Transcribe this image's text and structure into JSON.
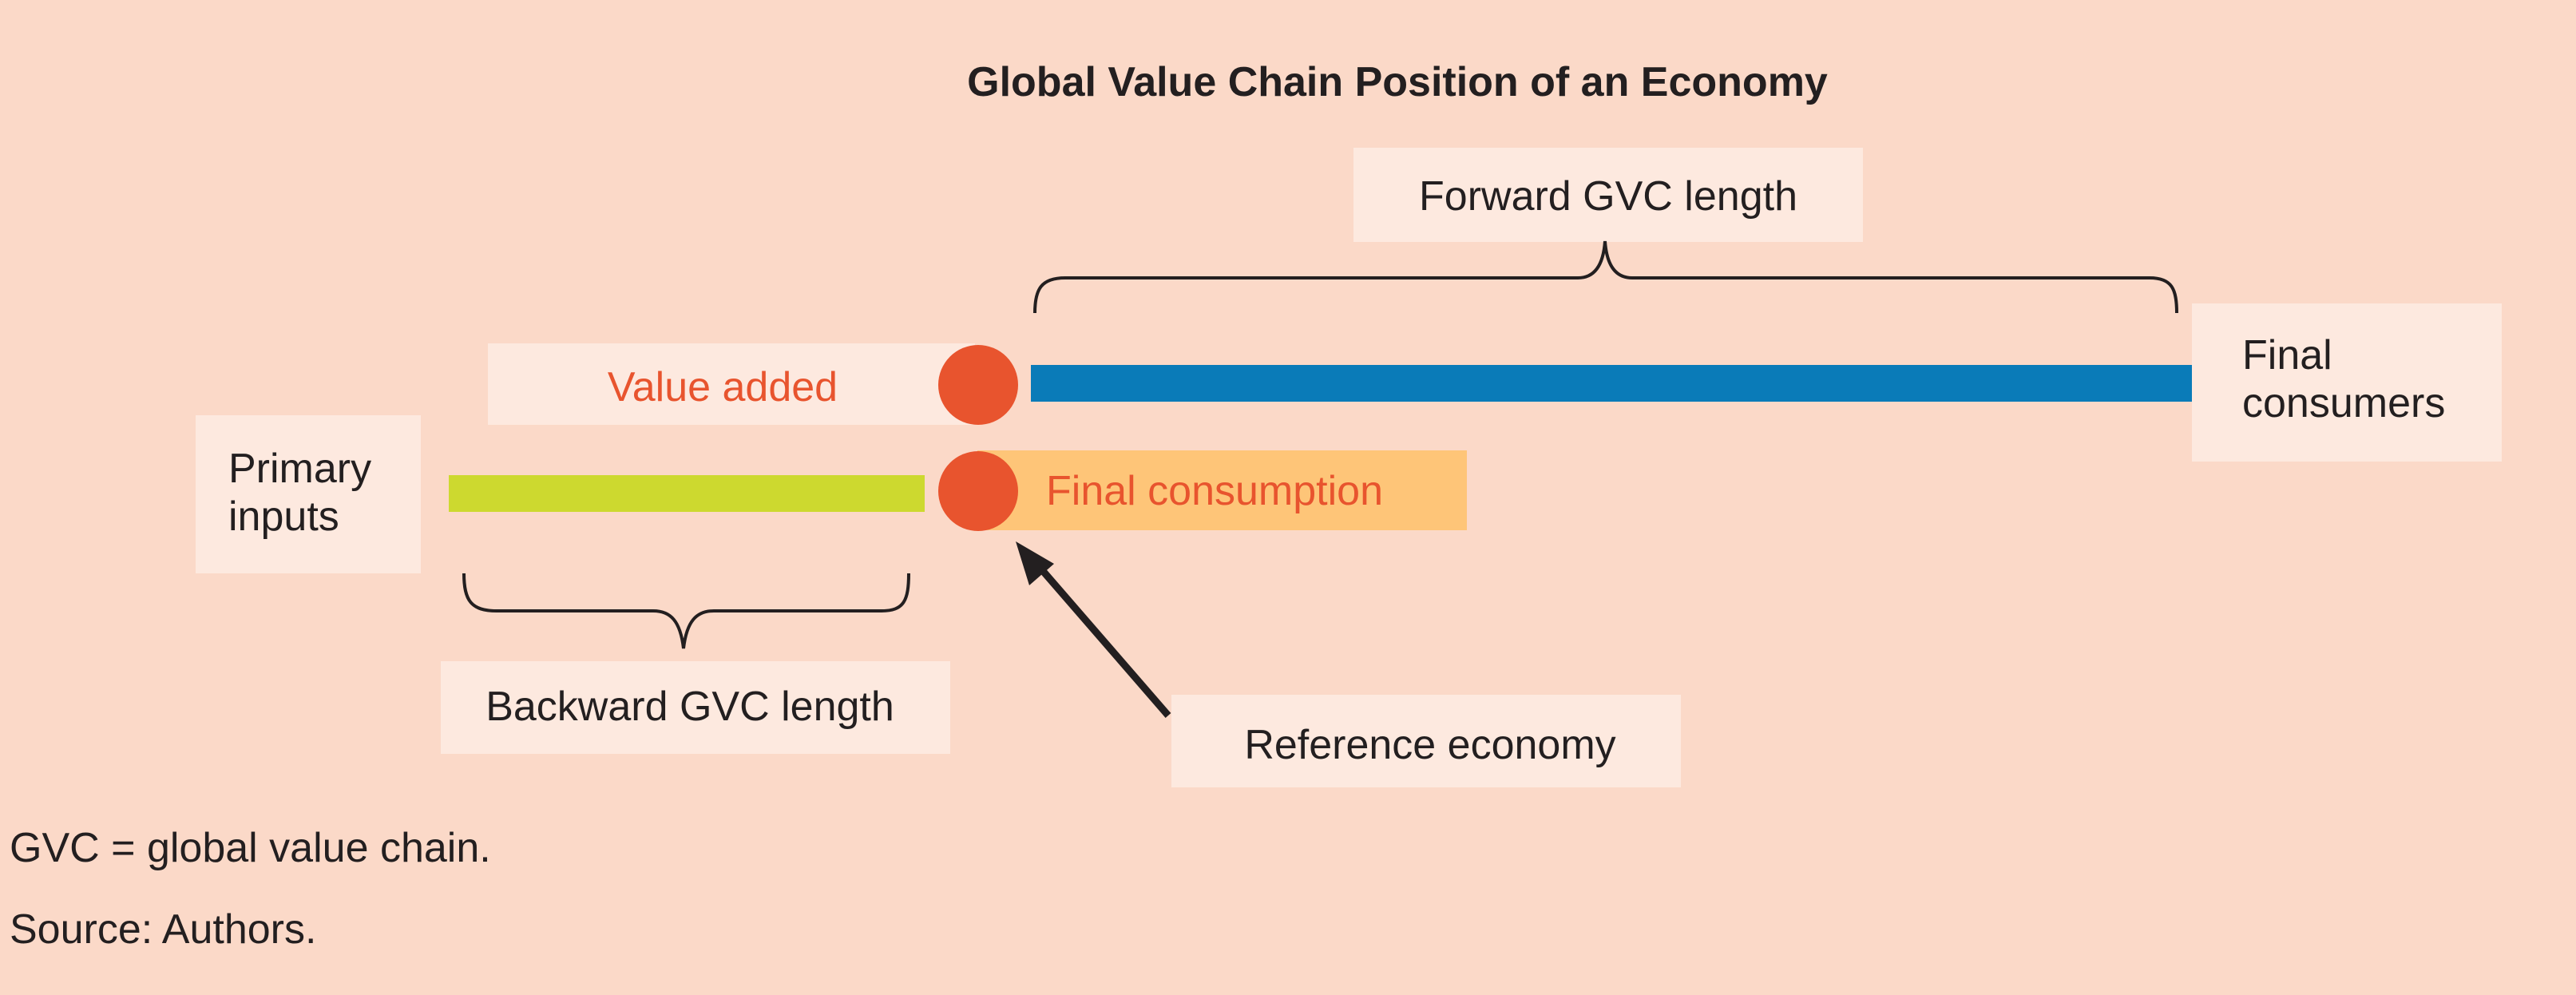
{
  "title": "Global Value Chain Position of an Economy",
  "labels": {
    "forward": "Forward GVC length",
    "backward": "Backward GVC length",
    "value_added": "Value added",
    "final_consumption": "Final consumption",
    "primary_inputs": [
      "Primary",
      "inputs"
    ],
    "final_consumers": [
      "Final",
      "consumers"
    ],
    "reference": "Reference economy"
  },
  "notes": {
    "abbreviation": "GVC = global value chain.",
    "source": "Source: Authors."
  },
  "colors": {
    "background": "#fbd9c8",
    "label_box": "#fde9df",
    "forward_bar": "#0a7bb8",
    "backward_bar": "#cdd92f",
    "node": "#e8542e",
    "final_consumption_box": "#fec578",
    "accent_text": "#e8542e",
    "text": "#231f20"
  }
}
